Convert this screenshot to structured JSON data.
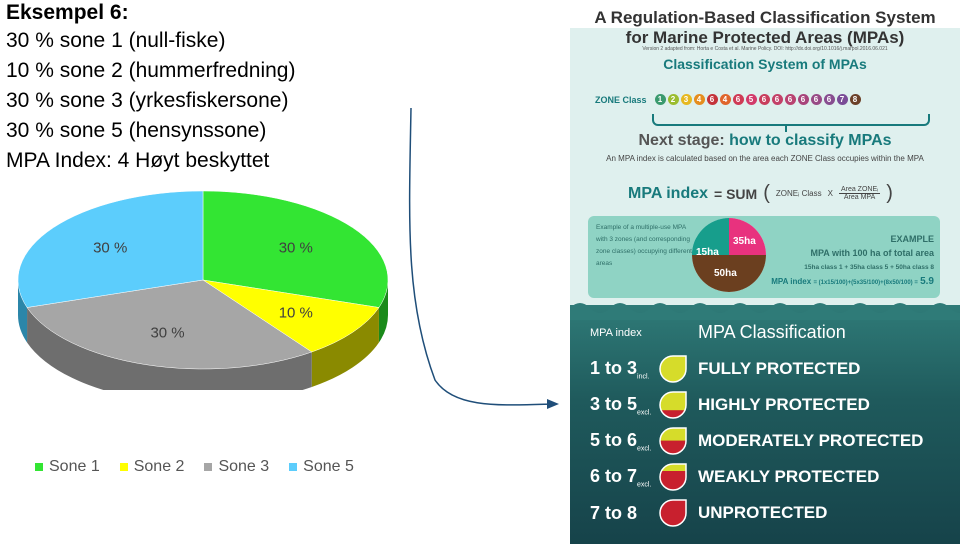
{
  "example": {
    "title": "Eksempel 6:",
    "lines": [
      "30 % sone 1 (null-fiske)",
      "10 % sone 2 (hummerfredning)",
      "30 % sone 3 (yrkesfiskersone)",
      "30 % sone 5 (hensynssone)",
      "MPA Index: 4 Høyt beskyttet"
    ]
  },
  "chart_data": {
    "type": "pie",
    "categories": [
      "Sone 1",
      "Sone 2",
      "Sone 3",
      "Sone 5"
    ],
    "values": [
      30,
      10,
      30,
      30
    ],
    "data_labels": [
      "30 %",
      "10 %",
      "30 %",
      "30 %"
    ],
    "colors": [
      "#33e533",
      "#ffff00",
      "#a6a6a6",
      "#5ccdfc"
    ],
    "side_colors": [
      "#1a8a1a",
      "#8a8a00",
      "#6e6e6e",
      "#2b86a9"
    ],
    "legend": "bottom",
    "style": "3d"
  },
  "infographic": {
    "title_line1": "A Regulation-Based Classification System",
    "title_line2": "for Marine Protected Areas (MPAs)",
    "credit": "Version 2 adapted from: Horta e Costa et al. Marine Policy. DOI: http://dx.doi.org/10.1016/j.marpol.2016.06.021",
    "subtitle": "Classification System of MPAs",
    "zone_label": "ZONE Class",
    "zones": [
      {
        "n": "1",
        "color": "#3a9a6e"
      },
      {
        "n": "2",
        "color": "#9bbd2f"
      },
      {
        "n": "3",
        "color": "#e6b820"
      },
      {
        "n": "4",
        "color": "#e58d1e"
      },
      {
        "n": "6",
        "color": "#c4323a"
      },
      {
        "n": "4",
        "color": "#e0652b"
      },
      {
        "n": "6",
        "color": "#cf3a55"
      },
      {
        "n": "5",
        "color": "#d23a6a"
      },
      {
        "n": "6",
        "color": "#c83d5c"
      },
      {
        "n": "6",
        "color": "#c34068"
      },
      {
        "n": "6",
        "color": "#b84270"
      },
      {
        "n": "6",
        "color": "#a8447b"
      },
      {
        "n": "6",
        "color": "#984a86"
      },
      {
        "n": "6",
        "color": "#874d90"
      },
      {
        "n": "7",
        "color": "#7a4c97"
      },
      {
        "n": "8",
        "color": "#6b4028"
      }
    ],
    "next_a": "Next stage:",
    "next_b": "how to classify MPAs",
    "next_sub": "An MPA index is calculated based on the area each ZONE Class occupies within the MPA",
    "formula_label": "MPA index",
    "formula_eq": "= SUM",
    "formula_zone": "ZONEᵢ Class",
    "formula_x": "X",
    "formula_num": "Area ZONEᵢ",
    "formula_den": "Area MPA",
    "example_text": "Example of a multiple-use MPA with 3 zones (and corresponding zone classes) occupying different areas",
    "circle_labels": [
      "15ha",
      "35ha",
      "50ha"
    ],
    "example_title": "EXAMPLE",
    "example_total": "MPA with 100 ha of total area",
    "example_detail": "15ha class 1 + 35ha class 5 + 50ha class 8",
    "example_index_label": "MPA index",
    "example_index_expr": "= (1x15/100)+(5x35/100)+(8x50/100) =",
    "example_index_result": "5.9",
    "col_index": "MPA index",
    "col_class": "MPA Classification",
    "classes": [
      {
        "range": "1 to 3",
        "suffix": "incl.",
        "name": "FULLY PROTECTED",
        "fill": 1.0
      },
      {
        "range": "3 to 5",
        "suffix": "excl.",
        "name": "HIGHLY PROTECTED",
        "fill": 0.65
      },
      {
        "range": "5 to 6",
        "suffix": "excl.",
        "name": "MODERATELY PROTECTED",
        "fill": 0.45
      },
      {
        "range": "6 to 7",
        "suffix": "excl.",
        "name": "WEAKLY PROTECTED",
        "fill": 0.25
      },
      {
        "range": "7 to 8",
        "suffix": "",
        "name": "UNPROTECTED",
        "fill": 0.0
      }
    ]
  }
}
